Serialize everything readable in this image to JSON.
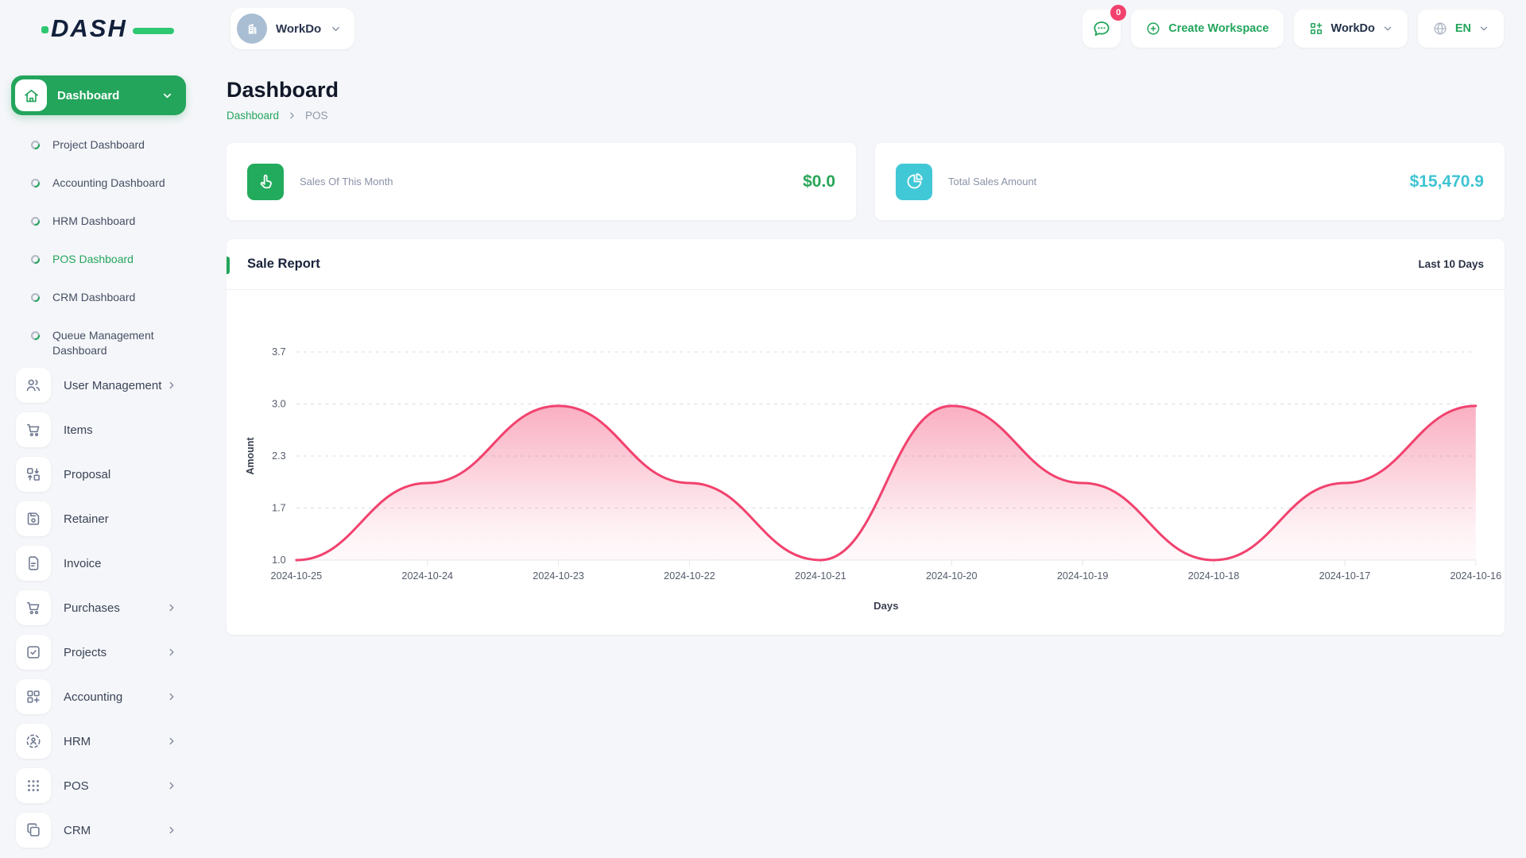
{
  "brand": {
    "logo_text": "DASH"
  },
  "topbar": {
    "workspace_switcher_label": "WorkDo",
    "messages_badge_count": "0",
    "create_workspace_label": "Create Workspace",
    "apps_dropdown_label": "WorkDo",
    "language_code": "EN"
  },
  "sidebar": {
    "dashboard_group_label": "Dashboard",
    "dashboard_children": [
      {
        "label": "Project Dashboard",
        "active": false
      },
      {
        "label": "Accounting Dashboard",
        "active": false
      },
      {
        "label": "HRM Dashboard",
        "active": false
      },
      {
        "label": "POS Dashboard",
        "active": true
      },
      {
        "label": "CRM Dashboard",
        "active": false
      },
      {
        "label": "Queue Management Dashboard",
        "active": false
      }
    ],
    "menu_items": [
      {
        "label": "User Management",
        "icon": "users-icon",
        "expandable": true
      },
      {
        "label": "Items",
        "icon": "cart-icon",
        "expandable": false
      },
      {
        "label": "Proposal",
        "icon": "proposal-swap-icon",
        "expandable": false
      },
      {
        "label": "Retainer",
        "icon": "floppy-icon",
        "expandable": false
      },
      {
        "label": "Invoice",
        "icon": "document-icon",
        "expandable": false
      },
      {
        "label": "Purchases",
        "icon": "cart-icon",
        "expandable": true
      },
      {
        "label": "Projects",
        "icon": "square-check-icon",
        "expandable": true
      },
      {
        "label": "Accounting",
        "icon": "grid-plus-icon",
        "expandable": true
      },
      {
        "label": "HRM",
        "icon": "person-dashed-circle-icon",
        "expandable": true
      },
      {
        "label": "POS",
        "icon": "dots-grid-icon",
        "expandable": true
      },
      {
        "label": "CRM",
        "icon": "overlap-squares-icon",
        "expandable": true
      }
    ]
  },
  "page": {
    "title": "Dashboard",
    "breadcrumb_root": "Dashboard",
    "breadcrumb_current": "POS"
  },
  "stats": [
    {
      "label": "Sales Of This Month",
      "value": "$0.0",
      "accent": "#23A55C",
      "icon": "tap-hand-icon"
    },
    {
      "label": "Total Sales Amount",
      "value": "$15,470.9",
      "accent": "#3FC8D6",
      "icon": "pie-chart-icon"
    }
  ],
  "sale_report": {
    "title": "Sale Report",
    "range_label": "Last 10 Days"
  },
  "chart_data": {
    "type": "area",
    "title": "Sale Report",
    "x": [
      "2024-10-25",
      "2024-10-24",
      "2024-10-23",
      "2024-10-22",
      "2024-10-21",
      "2024-10-20",
      "2024-10-19",
      "2024-10-18",
      "2024-10-17",
      "2024-10-16"
    ],
    "series": [
      {
        "name": "Amount",
        "values": [
          1.0,
          2.0,
          3.0,
          2.0,
          1.0,
          3.0,
          2.0,
          1.0,
          2.0,
          3.0
        ]
      }
    ],
    "xlabel": "Days",
    "ylabel": "Amount",
    "y_tick_labels": [
      "1.0",
      "1.7",
      "2.3",
      "3.0",
      "3.7"
    ],
    "ylim": [
      1.0,
      3.7
    ],
    "grid": "dashed-horizontal",
    "legend": "none",
    "line_color": "#F1426E",
    "fill_style": "vertical-gradient-pink"
  },
  "colors": {
    "brand_green": "#23A55C",
    "teal": "#3FC8D6",
    "pink": "#F1426E",
    "navy": "#13203C",
    "page_bg": "#F5F6F9"
  }
}
